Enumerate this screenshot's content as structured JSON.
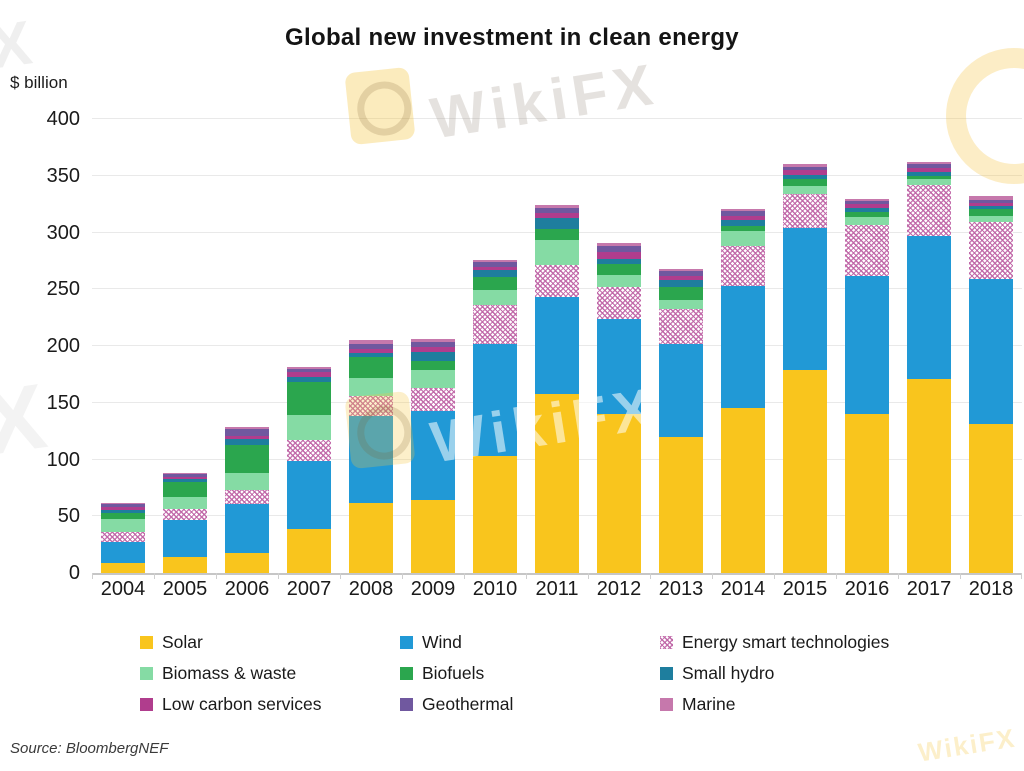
{
  "chart_data": {
    "type": "bar",
    "stacked": true,
    "title": "Global new investment in clean energy",
    "unit_label": "$ billion",
    "xlabel": "",
    "ylabel": "$ billion",
    "ylim": [
      0,
      400
    ],
    "yticks": [
      0,
      50,
      100,
      150,
      200,
      250,
      300,
      350,
      400
    ],
    "grid": "horizontal",
    "legend_position": "bottom",
    "categories": [
      "2004",
      "2005",
      "2006",
      "2007",
      "2008",
      "2009",
      "2010",
      "2011",
      "2012",
      "2013",
      "2014",
      "2015",
      "2016",
      "2017",
      "2018"
    ],
    "series": [
      {
        "name": "Solar",
        "color": "#F9C51D",
        "values": [
          9,
          14,
          18,
          39,
          62,
          64,
          103,
          158,
          140,
          120,
          145,
          179,
          140,
          171,
          131
        ]
      },
      {
        "name": "Wind",
        "color": "#2199D6",
        "values": [
          18,
          33,
          43,
          60,
          76,
          79,
          99,
          85,
          84,
          82,
          108,
          125,
          122,
          126,
          128
        ]
      },
      {
        "name": "Energy smart technologies",
        "color": "#BF64A6",
        "pattern": "crosshatch",
        "values": [
          9,
          9,
          12,
          18,
          18,
          20,
          34,
          28,
          28,
          31,
          35,
          30,
          45,
          45,
          50
        ]
      },
      {
        "name": "Biomass & waste",
        "color": "#85DBA4",
        "values": [
          12,
          11,
          15,
          22,
          16,
          16,
          13,
          22,
          11,
          8,
          13,
          7,
          7,
          5,
          6
        ]
      },
      {
        "name": "Biofuels",
        "color": "#2BA64E",
        "values": [
          5,
          13,
          25,
          29,
          18,
          8,
          12,
          10,
          9,
          11,
          5,
          6,
          4,
          3,
          6
        ]
      },
      {
        "name": "Small hydro",
        "color": "#1E7E9E",
        "values": [
          3,
          3,
          5,
          5,
          4,
          8,
          6,
          10,
          5,
          6,
          5,
          4,
          4,
          3,
          2
        ]
      },
      {
        "name": "Low carbon services",
        "color": "#B03D8D",
        "values": [
          2,
          2,
          3,
          4,
          3,
          4,
          3,
          4,
          6,
          4,
          4,
          4,
          3,
          4,
          3
        ]
      },
      {
        "name": "Geothermal",
        "color": "#70589F",
        "values": [
          3,
          2,
          6,
          3,
          5,
          5,
          4,
          5,
          5,
          4,
          4,
          3,
          3,
          3,
          3
        ]
      },
      {
        "name": "Marine",
        "color": "#C678AC",
        "values": [
          1,
          1,
          2,
          2,
          3,
          2,
          2,
          2,
          3,
          2,
          2,
          2,
          2,
          2,
          3
        ]
      }
    ],
    "totals": [
      62,
      88,
      129,
      182,
      205,
      206,
      276,
      324,
      291,
      268,
      321,
      360,
      330,
      362,
      332
    ]
  },
  "watermark": {
    "text": "WikiFX"
  },
  "source": {
    "label": "Source: BloombergNEF"
  }
}
